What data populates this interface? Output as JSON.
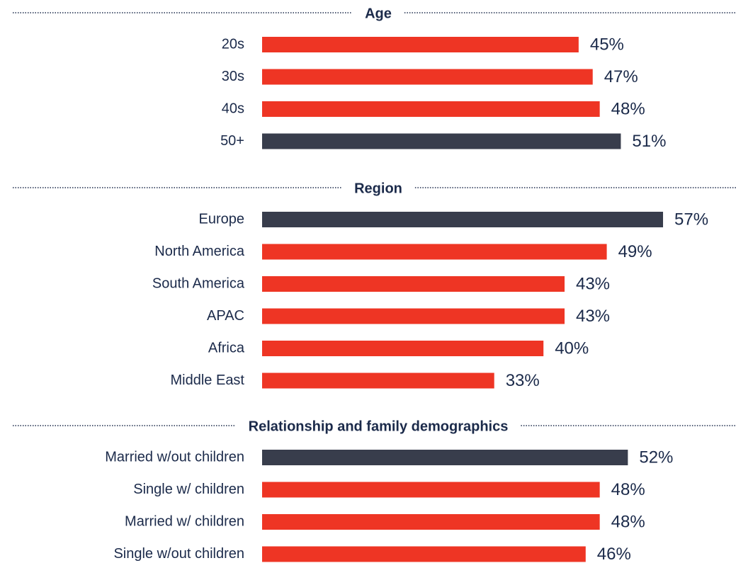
{
  "chart_data": [
    {
      "type": "bar",
      "title": "Age",
      "categories": [
        "20s",
        "30s",
        "40s",
        "50+"
      ],
      "values": [
        45,
        47,
        48,
        51
      ],
      "value_labels": [
        "45%",
        "47%",
        "48%",
        "51%"
      ],
      "colors": [
        "#ee3524",
        "#ee3524",
        "#ee3524",
        "#383d4c"
      ]
    },
    {
      "type": "bar",
      "title": "Region",
      "categories": [
        "Europe",
        "North America",
        "South America",
        "APAC",
        "Africa",
        "Middle East"
      ],
      "values": [
        57,
        49,
        43,
        43,
        40,
        33
      ],
      "value_labels": [
        "57%",
        "49%",
        "43%",
        "43%",
        "40%",
        "33%"
      ],
      "colors": [
        "#383d4c",
        "#ee3524",
        "#ee3524",
        "#ee3524",
        "#ee3524",
        "#ee3524"
      ]
    },
    {
      "type": "bar",
      "title": "Relationship and family demographics",
      "categories": [
        "Married w/out children",
        "Single w/ children",
        "Married w/ children",
        "Single w/out children"
      ],
      "values": [
        52,
        48,
        48,
        46
      ],
      "value_labels": [
        "52%",
        "48%",
        "48%",
        "46%"
      ],
      "colors": [
        "#383d4c",
        "#ee3524",
        "#ee3524",
        "#ee3524"
      ]
    }
  ]
}
